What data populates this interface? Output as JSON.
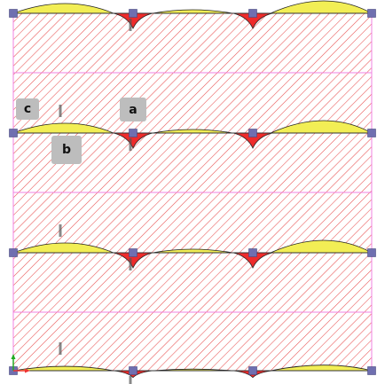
{
  "colors": {
    "hatch": "#e85050",
    "grid_line": "#f080e0",
    "node": "#6f6fb0",
    "moment_positive_fill": "#f2ee55",
    "moment_negative_fill": "#ee2b2b",
    "moment_outline": "#222222",
    "axis_x": "#e33",
    "axis_y": "#2a2",
    "tag_background": "#bdbdbd"
  },
  "callouts": {
    "a": "a",
    "b": "b",
    "c": "c"
  },
  "icons": [
    "node-marker-square",
    "coordinate-axis-icon"
  ]
}
